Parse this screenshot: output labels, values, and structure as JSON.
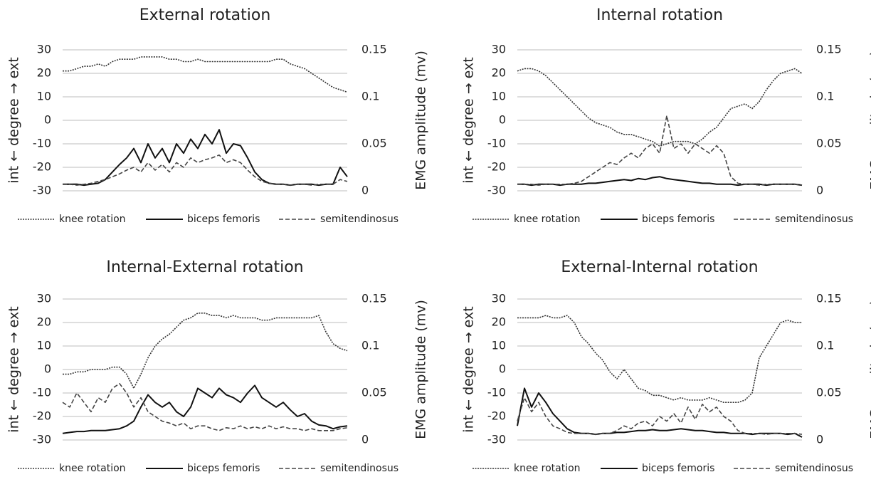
{
  "chart_data": [
    {
      "type": "line",
      "title": "External rotation",
      "ylabel": "int ← degree → ext",
      "y2label": "EMG amplitude (mv)",
      "ylim": [
        -30,
        30
      ],
      "yticks": [
        -30,
        -20,
        -10,
        0,
        10,
        20,
        30
      ],
      "y2lim": [
        0,
        0.15
      ],
      "y2ticks": [
        0,
        0.05,
        0.1,
        0.15
      ],
      "grid": true,
      "series": [
        {
          "name": "knee rotation",
          "color": "#333333",
          "style": "dotted",
          "values": [
            21,
            21,
            22,
            23,
            23,
            24,
            23,
            25,
            26,
            26,
            26,
            27,
            27,
            27,
            27,
            26,
            26,
            25,
            25,
            26,
            25,
            25,
            25,
            25,
            25,
            25,
            25,
            25,
            25,
            25,
            26,
            26,
            24,
            23,
            22,
            20,
            18,
            16,
            14,
            13,
            12
          ]
        },
        {
          "name": "biceps femoris",
          "color": "#111111",
          "style": "solid",
          "axis": "y2",
          "values": [
            0.007,
            0.007,
            0.007,
            0.006,
            0.007,
            0.008,
            0.012,
            0.02,
            0.028,
            0.035,
            0.045,
            0.03,
            0.05,
            0.035,
            0.045,
            0.03,
            0.05,
            0.04,
            0.055,
            0.045,
            0.06,
            0.05,
            0.065,
            0.04,
            0.05,
            0.048,
            0.035,
            0.02,
            0.012,
            0.008,
            0.007,
            0.007,
            0.006,
            0.007,
            0.007,
            0.007,
            0.006,
            0.007,
            0.007,
            0.025,
            0.015
          ]
        },
        {
          "name": "semitendinosus",
          "color": "#444444",
          "style": "dashed",
          "axis": "y2",
          "values": [
            0.007,
            0.007,
            0.006,
            0.007,
            0.008,
            0.01,
            0.012,
            0.015,
            0.018,
            0.022,
            0.025,
            0.02,
            0.03,
            0.022,
            0.028,
            0.02,
            0.03,
            0.025,
            0.035,
            0.03,
            0.033,
            0.035,
            0.038,
            0.03,
            0.033,
            0.03,
            0.022,
            0.015,
            0.01,
            0.008,
            0.007,
            0.007,
            0.006,
            0.007,
            0.007,
            0.006,
            0.007,
            0.007,
            0.007,
            0.012,
            0.01
          ]
        }
      ]
    },
    {
      "type": "line",
      "title": "Internal rotation",
      "ylabel": "int ← degree → ext",
      "y2label": "EMG amplitude (mv)",
      "ylim": [
        -30,
        30
      ],
      "yticks": [
        -30,
        -20,
        -10,
        0,
        10,
        20,
        30
      ],
      "y2lim": [
        0,
        0.15
      ],
      "y2ticks": [
        0,
        0.05,
        0.1,
        0.15
      ],
      "grid": true,
      "series": [
        {
          "name": "knee rotation",
          "color": "#333333",
          "style": "dotted",
          "values": [
            21,
            22,
            22,
            21,
            19,
            16,
            13,
            10,
            7,
            4,
            1,
            -1,
            -2,
            -3,
            -5,
            -6,
            -6,
            -7,
            -8,
            -9,
            -11,
            -10,
            -9,
            -9,
            -9,
            -10,
            -8,
            -5,
            -3,
            1,
            5,
            6,
            7,
            5,
            8,
            13,
            17,
            20,
            21,
            22,
            20
          ]
        },
        {
          "name": "biceps femoris",
          "color": "#111111",
          "style": "solid",
          "axis": "y2",
          "values": [
            0.007,
            0.007,
            0.006,
            0.007,
            0.007,
            0.007,
            0.006,
            0.007,
            0.007,
            0.007,
            0.008,
            0.008,
            0.009,
            0.01,
            0.011,
            0.012,
            0.011,
            0.013,
            0.012,
            0.014,
            0.015,
            0.013,
            0.012,
            0.011,
            0.01,
            0.009,
            0.008,
            0.008,
            0.007,
            0.007,
            0.007,
            0.006,
            0.007,
            0.007,
            0.007,
            0.006,
            0.007,
            0.007,
            0.007,
            0.007,
            0.006
          ]
        },
        {
          "name": "semitendinosus",
          "color": "#444444",
          "style": "dashed",
          "axis": "y2",
          "values": [
            0.007,
            0.007,
            0.007,
            0.006,
            0.007,
            0.007,
            0.007,
            0.007,
            0.008,
            0.01,
            0.015,
            0.02,
            0.025,
            0.03,
            0.028,
            0.035,
            0.04,
            0.035,
            0.045,
            0.05,
            0.04,
            0.08,
            0.045,
            0.05,
            0.04,
            0.05,
            0.045,
            0.04,
            0.048,
            0.04,
            0.015,
            0.008,
            0.007,
            0.007,
            0.006,
            0.007,
            0.007,
            0.007,
            0.007,
            0.007,
            0.006
          ]
        }
      ]
    },
    {
      "type": "line",
      "title": "Internal-External rotation",
      "ylabel": "int ← degree → ext",
      "y2label": "EMG amplitude (mv)",
      "ylim": [
        -30,
        30
      ],
      "yticks": [
        -30,
        -20,
        -10,
        0,
        10,
        20,
        30
      ],
      "y2lim": [
        0,
        0.15
      ],
      "y2ticks": [
        0,
        0.05,
        0.1,
        0.15
      ],
      "grid": true,
      "series": [
        {
          "name": "knee rotation",
          "color": "#333333",
          "style": "dotted",
          "values": [
            -2,
            -2,
            -1,
            -1,
            0,
            0,
            0,
            1,
            1,
            -2,
            -8,
            -2,
            5,
            10,
            13,
            15,
            18,
            21,
            22,
            24,
            24,
            23,
            23,
            22,
            23,
            22,
            22,
            22,
            21,
            21,
            22,
            22,
            22,
            22,
            22,
            22,
            23,
            16,
            11,
            9,
            8
          ]
        },
        {
          "name": "biceps femoris",
          "color": "#111111",
          "style": "solid",
          "axis": "y2",
          "values": [
            0.007,
            0.008,
            0.009,
            0.009,
            0.01,
            0.01,
            0.01,
            0.011,
            0.012,
            0.015,
            0.02,
            0.035,
            0.048,
            0.04,
            0.035,
            0.04,
            0.03,
            0.025,
            0.035,
            0.055,
            0.05,
            0.045,
            0.055,
            0.048,
            0.045,
            0.04,
            0.05,
            0.058,
            0.045,
            0.04,
            0.035,
            0.04,
            0.032,
            0.025,
            0.028,
            0.02,
            0.016,
            0.015,
            0.012,
            0.014,
            0.015
          ]
        },
        {
          "name": "semitendinosus",
          "color": "#444444",
          "style": "dashed",
          "axis": "y2",
          "values": [
            0.04,
            0.035,
            0.05,
            0.04,
            0.03,
            0.045,
            0.04,
            0.055,
            0.06,
            0.05,
            0.035,
            0.045,
            0.03,
            0.025,
            0.02,
            0.018,
            0.015,
            0.018,
            0.012,
            0.015,
            0.015,
            0.012,
            0.01,
            0.013,
            0.012,
            0.015,
            0.012,
            0.014,
            0.012,
            0.015,
            0.012,
            0.014,
            0.012,
            0.012,
            0.01,
            0.012,
            0.01,
            0.01,
            0.01,
            0.012,
            0.013
          ]
        }
      ]
    },
    {
      "type": "line",
      "title": "External-Internal rotation",
      "ylabel": "int ← degree → ext",
      "y2label": "EMG amplitude (mv)",
      "ylim": [
        -30,
        30
      ],
      "yticks": [
        -30,
        -20,
        -10,
        0,
        10,
        20,
        30
      ],
      "y2lim": [
        0,
        0.15
      ],
      "y2ticks": [
        0,
        0.05,
        0.1,
        0.15
      ],
      "grid": true,
      "series": [
        {
          "name": "knee rotation",
          "color": "#333333",
          "style": "dotted",
          "values": [
            22,
            22,
            22,
            22,
            23,
            22,
            22,
            23,
            20,
            14,
            11,
            7,
            4,
            -1,
            -4,
            0,
            -4,
            -8,
            -9,
            -11,
            -11,
            -12,
            -13,
            -12,
            -13,
            -13,
            -13,
            -12,
            -13,
            -14,
            -14,
            -14,
            -13,
            -10,
            5,
            10,
            15,
            20,
            21,
            20,
            20
          ]
        },
        {
          "name": "biceps femoris",
          "color": "#111111",
          "style": "solid",
          "axis": "y2",
          "values": [
            0.015,
            0.055,
            0.035,
            0.05,
            0.04,
            0.028,
            0.02,
            0.012,
            0.008,
            0.007,
            0.007,
            0.006,
            0.007,
            0.007,
            0.008,
            0.008,
            0.009,
            0.01,
            0.01,
            0.011,
            0.01,
            0.01,
            0.011,
            0.012,
            0.011,
            0.01,
            0.01,
            0.009,
            0.008,
            0.008,
            0.007,
            0.007,
            0.007,
            0.006,
            0.007,
            0.007,
            0.007,
            0.007,
            0.006,
            0.007,
            0.003
          ]
        },
        {
          "name": "semitendinosus",
          "color": "#444444",
          "style": "dashed",
          "axis": "y2",
          "values": [
            0.02,
            0.045,
            0.03,
            0.04,
            0.025,
            0.015,
            0.012,
            0.008,
            0.007,
            0.007,
            0.007,
            0.006,
            0.007,
            0.007,
            0.01,
            0.015,
            0.012,
            0.018,
            0.02,
            0.015,
            0.025,
            0.02,
            0.028,
            0.018,
            0.035,
            0.022,
            0.038,
            0.03,
            0.035,
            0.025,
            0.02,
            0.01,
            0.007,
            0.007,
            0.007,
            0.006,
            0.007,
            0.007,
            0.007,
            0.007,
            0.006
          ]
        }
      ]
    }
  ]
}
